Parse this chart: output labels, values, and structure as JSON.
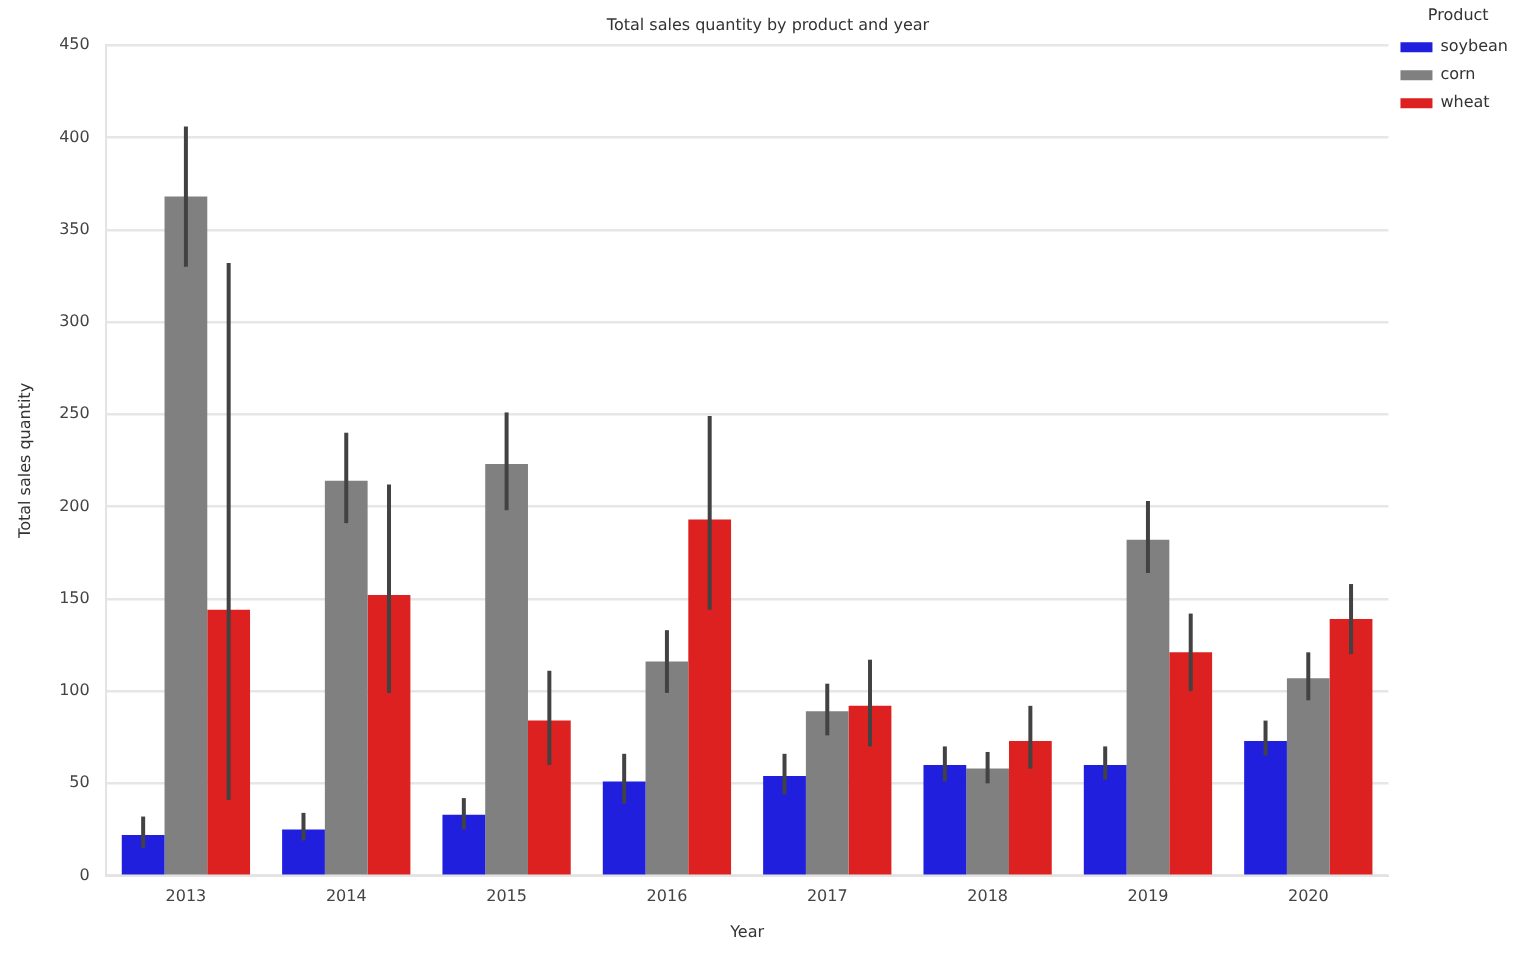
{
  "chart_data": {
    "type": "bar",
    "title": "Total sales quantity by product and year",
    "xlabel": "Year",
    "ylabel": "Total sales quantity",
    "legend_title": "Product",
    "legend": "right",
    "grid": "y",
    "categories": [
      "2013",
      "2014",
      "2015",
      "2016",
      "2017",
      "2018",
      "2019",
      "2020"
    ],
    "ylim": [
      0,
      450
    ],
    "yticks": [
      0,
      50,
      100,
      150,
      200,
      250,
      300,
      350,
      400,
      450
    ],
    "series": [
      {
        "name": "soybean",
        "color": "#1f1fdd",
        "values": [
          22,
          25,
          33,
          51,
          54,
          60,
          60,
          73
        ],
        "errors": [
          [
            15,
            32
          ],
          [
            19,
            34
          ],
          [
            25,
            42
          ],
          [
            39,
            66
          ],
          [
            44,
            66
          ],
          [
            51,
            70
          ],
          [
            52,
            70
          ],
          [
            65,
            84
          ]
        ]
      },
      {
        "name": "corn",
        "color": "#808080",
        "values": [
          368,
          214,
          223,
          116,
          89,
          58,
          182,
          107
        ],
        "errors": [
          [
            330,
            406
          ],
          [
            191,
            240
          ],
          [
            198,
            251
          ],
          [
            99,
            133
          ],
          [
            76,
            104
          ],
          [
            50,
            67
          ],
          [
            164,
            203
          ],
          [
            95,
            121
          ]
        ]
      },
      {
        "name": "wheat",
        "color": "#dd2020",
        "values": [
          144,
          152,
          84,
          193,
          92,
          73,
          121,
          139
        ],
        "errors": [
          [
            41,
            332
          ],
          [
            99,
            212
          ],
          [
            60,
            111
          ],
          [
            144,
            249
          ],
          [
            70,
            117
          ],
          [
            58,
            92
          ],
          [
            100,
            142
          ],
          [
            120,
            158
          ]
        ]
      }
    ]
  }
}
